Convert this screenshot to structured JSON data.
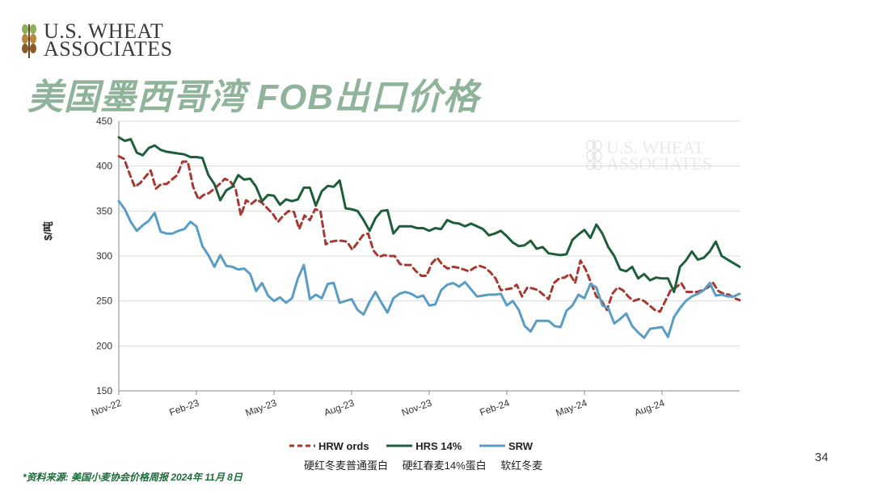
{
  "logo": {
    "line1": "U.S. WHEAT",
    "line2": "ASSOCIATES"
  },
  "watermark": {
    "line1": "U.S. WHEAT",
    "line2": "ASSOCIATES"
  },
  "title": "美国墨西哥湾 FOB出口价格",
  "page_number": "34",
  "source": "*资料来源: 美国小麦协会价格周报 2024年 11月 8日",
  "legend_cn": [
    "硬红冬麦普通蛋白",
    "硬红春麦14%蛋白",
    "软红冬麦"
  ],
  "chart_data": {
    "type": "line",
    "title": "",
    "xlabel": "",
    "ylabel": "$/吨",
    "ylim": [
      150,
      450
    ],
    "yticks": [
      150,
      200,
      250,
      300,
      350,
      400,
      450
    ],
    "xticks": [
      "Nov-22",
      "Feb-23",
      "May-23",
      "Aug-23",
      "Nov-23",
      "Feb-24",
      "May-24",
      "Aug-24"
    ],
    "grid": "horizontal",
    "legend_position": "bottom",
    "colors": {
      "HRW ords": "#a63a32",
      "HRS 14%": "#1f5e3b",
      "SRW": "#5a9dc4"
    },
    "series": [
      {
        "name": "HRW ords",
        "style": "dashed",
        "values": [
          411,
          408,
          392,
          377,
          381,
          388,
          395,
          375,
          380,
          380,
          385,
          390,
          405,
          405,
          377,
          363,
          368,
          370,
          375,
          380,
          386,
          383,
          375,
          345,
          362,
          358,
          363,
          359,
          353,
          347,
          338,
          345,
          350,
          349,
          330,
          345,
          340,
          352,
          350,
          313,
          316,
          317,
          317,
          316,
          307,
          315,
          323,
          325,
          306,
          299,
          301,
          300,
          300,
          291,
          290,
          290,
          283,
          278,
          278,
          292,
          298,
          290,
          286,
          288,
          287,
          285,
          283,
          287,
          289,
          287,
          282,
          275,
          262,
          263,
          264,
          268,
          255,
          265,
          264,
          262,
          257,
          252,
          270,
          275,
          276,
          280,
          270,
          295,
          285,
          270,
          255,
          250,
          240,
          258,
          265,
          262,
          255,
          250,
          252,
          250,
          245,
          240,
          238,
          250,
          262,
          265,
          270,
          260,
          260,
          260,
          262,
          265,
          270,
          261,
          258,
          257,
          253,
          251
        ]
      },
      {
        "name": "HRS 14%",
        "style": "solid",
        "values": [
          432,
          428,
          430,
          415,
          412,
          420,
          423,
          418,
          416,
          415,
          414,
          413,
          410,
          410,
          409,
          390,
          380,
          362,
          373,
          377,
          390,
          385,
          386,
          377,
          361,
          368,
          367,
          357,
          363,
          361,
          363,
          376,
          376,
          356,
          372,
          378,
          377,
          384,
          353,
          352,
          350,
          340,
          328,
          342,
          350,
          351,
          325,
          333,
          333,
          333,
          331,
          331,
          328,
          331,
          330,
          340,
          337,
          336,
          333,
          336,
          333,
          330,
          323,
          325,
          328,
          322,
          315,
          311,
          312,
          317,
          308,
          310,
          303,
          302,
          301,
          302,
          318,
          324,
          329,
          320,
          335,
          325,
          310,
          300,
          285,
          283,
          288,
          275,
          280,
          273,
          276,
          275,
          275,
          260,
          288,
          295,
          305,
          296,
          298,
          305,
          316,
          300,
          296,
          292,
          288
        ]
      },
      {
        "name": "SRW",
        "style": "solid",
        "values": [
          361,
          352,
          338,
          328,
          334,
          339,
          348,
          327,
          325,
          325,
          328,
          330,
          338,
          333,
          311,
          301,
          288,
          301,
          289,
          288,
          285,
          286,
          280,
          261,
          270,
          256,
          250,
          254,
          248,
          253,
          275,
          290,
          252,
          257,
          253,
          269,
          270,
          248,
          250,
          252,
          240,
          235,
          249,
          260,
          248,
          237,
          253,
          258,
          260,
          258,
          254,
          256,
          245,
          246,
          262,
          268,
          270,
          266,
          271,
          263,
          255,
          256,
          257,
          257,
          258,
          245,
          250,
          240,
          222,
          216,
          228,
          228,
          228,
          222,
          221,
          239,
          245,
          257,
          253,
          269,
          265,
          245,
          242,
          225,
          230,
          236,
          222,
          215,
          209,
          219,
          220,
          221,
          210,
          232,
          242,
          250,
          255,
          258,
          262,
          270,
          256,
          257,
          255,
          255,
          258
        ]
      }
    ]
  }
}
